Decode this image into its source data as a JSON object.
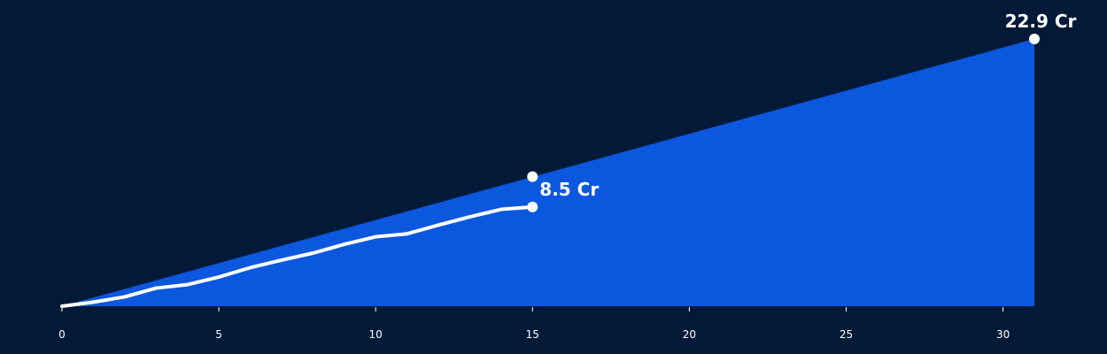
{
  "colors": {
    "background": "#021a38",
    "area_fill": "#0b57de",
    "line": "#ffffff",
    "text": "#ffffff"
  },
  "chart_data": {
    "type": "area",
    "title": "",
    "xlabel": "",
    "ylabel": "",
    "xlim": [
      0,
      31
    ],
    "ylim": [
      0,
      22.9
    ],
    "x_ticks": [
      0,
      5,
      10,
      15,
      20,
      25,
      30
    ],
    "x_tick_labels": [
      "0",
      "5",
      "10",
      "15",
      "20",
      "25",
      "30"
    ],
    "y_axis_visible": false,
    "grid": false,
    "legend": "none",
    "series": [
      {
        "type": "area",
        "x": [
          0,
          31
        ],
        "values": [
          0,
          22.9
        ],
        "end_label": "22.9 Cr"
      },
      {
        "type": "line",
        "x": [
          0,
          1,
          2,
          3,
          4,
          5,
          6,
          7,
          8,
          9,
          10,
          11,
          12,
          13,
          14,
          15
        ],
        "values": [
          0,
          0.35,
          0.8,
          1.55,
          1.85,
          2.5,
          3.3,
          3.95,
          4.55,
          5.3,
          5.95,
          6.2,
          6.95,
          7.65,
          8.3,
          8.5
        ],
        "end_label": "8.5 Cr"
      }
    ],
    "annotations": [
      {
        "x": 15,
        "y": 11.1,
        "type": "marker"
      }
    ]
  },
  "labels": {
    "area_end": "22.9 Cr",
    "line_end": "8.5 Cr"
  }
}
